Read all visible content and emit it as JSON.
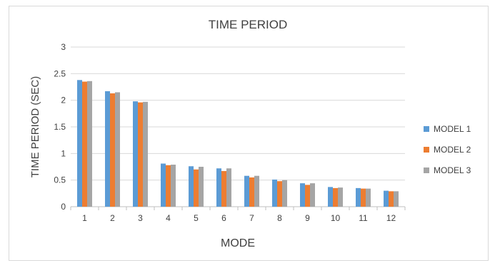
{
  "chart_data": {
    "type": "bar",
    "title": "TIME PERIOD",
    "xlabel": "MODE",
    "ylabel": "TIME PERIOD (SEC)",
    "ylim": [
      0,
      3
    ],
    "yticks": [
      "0",
      "0.5",
      "1",
      "1.5",
      "2",
      "2.5",
      "3"
    ],
    "grid": true,
    "legend_position": "right",
    "categories": [
      "1",
      "2",
      "3",
      "4",
      "5",
      "6",
      "7",
      "8",
      "9",
      "10",
      "11",
      "12"
    ],
    "series": [
      {
        "name": "MODEL 1",
        "color": "#5b9bd5",
        "values": [
          2.38,
          2.17,
          1.98,
          0.81,
          0.76,
          0.72,
          0.58,
          0.51,
          0.44,
          0.37,
          0.35,
          0.3
        ]
      },
      {
        "name": "MODEL 2",
        "color": "#ed7d31",
        "values": [
          2.35,
          2.13,
          1.96,
          0.78,
          0.7,
          0.67,
          0.55,
          0.48,
          0.41,
          0.35,
          0.34,
          0.29
        ]
      },
      {
        "name": "MODEL 3",
        "color": "#a5a5a5",
        "values": [
          2.36,
          2.15,
          1.97,
          0.79,
          0.75,
          0.72,
          0.58,
          0.5,
          0.44,
          0.36,
          0.34,
          0.29
        ]
      }
    ]
  }
}
